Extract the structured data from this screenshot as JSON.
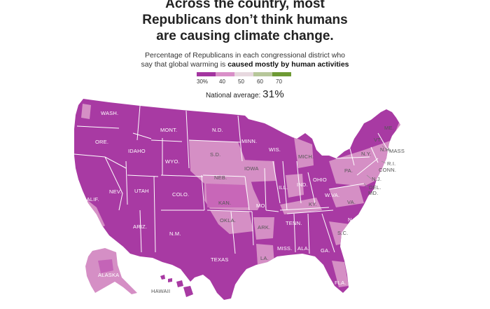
{
  "title_lines": [
    "Across the country, most",
    "Republicans don’t think humans",
    "are causing climate change."
  ],
  "subtitle": {
    "line1": "Percentage of Republicans in each congressional district who",
    "line2_pre": "say that global warming is ",
    "line2_bold": "caused mostly by human activities"
  },
  "legend": {
    "colors": [
      "#a335a0",
      "#d98fc8",
      "#e7d8df",
      "#b7c79a",
      "#6e9a34"
    ],
    "ticks": [
      "30%",
      "40",
      "50",
      "60",
      "70"
    ]
  },
  "national_average": {
    "label": "National average:",
    "value": "31%"
  },
  "colors": {
    "base": "#a83aa3",
    "mid": "#d58fc5",
    "border": "#ffffff"
  },
  "state_labels": {
    "wash": "WASH.",
    "ore": "ORE.",
    "calif": "CALIF.",
    "nev": "NEV.",
    "idaho": "IDAHO",
    "mont": "MONT.",
    "wyo": "WYO.",
    "utah": "UTAH",
    "colo": "COLO.",
    "ariz": "ARIZ.",
    "nm": "N.M.",
    "nd": "N.D.",
    "sd": "S.D.",
    "neb": "NEB.",
    "kan": "KAN.",
    "okla": "OKLA.",
    "texas": "TEXAS",
    "minn": "MINN.",
    "iowa": "IOWA",
    "mo": "MO.",
    "ark": "ARK.",
    "la": "LA.",
    "wis": "WIS.",
    "ill": "ILL.",
    "mich": "MICH.",
    "ind": "IND.",
    "ohio": "OHIO",
    "ky": "KY.",
    "tenn": "TENN.",
    "miss": "MISS.",
    "ala": "ALA.",
    "ga": "GA.",
    "fla": "FLA.",
    "sc": "S.C.",
    "nc": "N.C.",
    "va": "VA.",
    "wva": "W.VA.",
    "pa": "PA.",
    "ny": "N.Y.",
    "vt": "VT.",
    "nh": "N.H.",
    "me": "ME.",
    "mass": "MASS",
    "ri": "R.I.",
    "conn": "CONN.",
    "nj": "N.J.",
    "del": "DEL.",
    "md": "MD.",
    "alaska": "ALASKA",
    "hawaii": "HAWAII"
  }
}
